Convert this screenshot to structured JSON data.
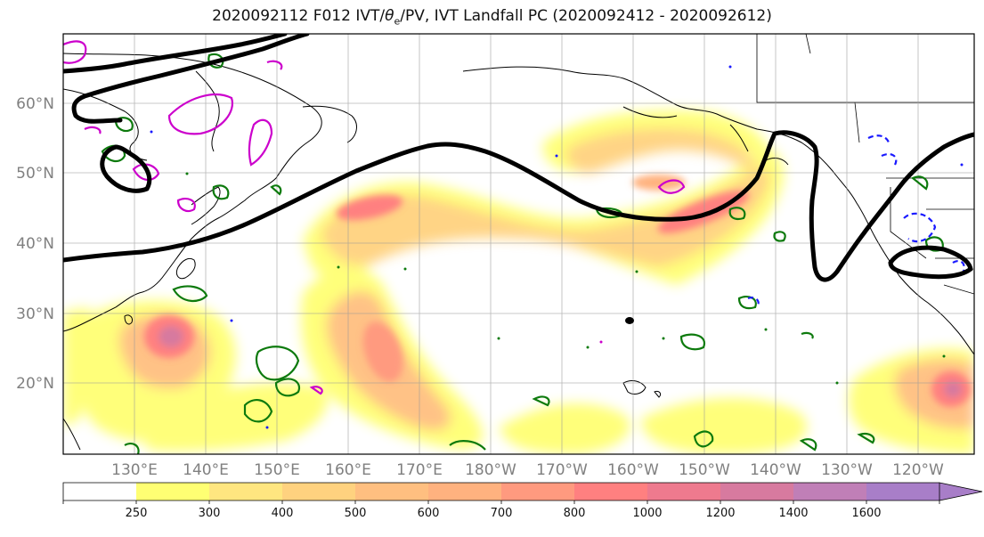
{
  "title": {
    "prefix": "2020092112 F012 IVT/",
    "theta": "θ",
    "sub": "e",
    "suffix": "/PV, IVT Landfall PC (2020092412 - 2020092612)"
  },
  "axes": {
    "lat_labels": [
      "60°N",
      "50°N",
      "40°N",
      "30°N",
      "20°N"
    ],
    "lon_labels": [
      "130°E",
      "140°E",
      "150°E",
      "160°E",
      "170°E",
      "180°W",
      "170°W",
      "160°W",
      "150°W",
      "140°W",
      "130°W",
      "120°W"
    ]
  },
  "colorbar": {
    "levels": [
      "250",
      "300",
      "400",
      "500",
      "600",
      "700",
      "800",
      "1000",
      "1200",
      "1400",
      "1600"
    ],
    "colors": [
      "#ffffff",
      "#ffff73",
      "#ffe680",
      "#ffd27f",
      "#ffbf80",
      "#ffb27f",
      "#ff9a7f",
      "#ff8080",
      "#ee7a8e",
      "#d77a9f",
      "#c07fb7",
      "#a87ec8"
    ]
  },
  "legend_colors": {
    "pv": "#0d7a0d",
    "theta_e_cold": "#1a1aff",
    "theta_e_warm": "#cc00cc",
    "landfall_pc": "#000000"
  }
}
